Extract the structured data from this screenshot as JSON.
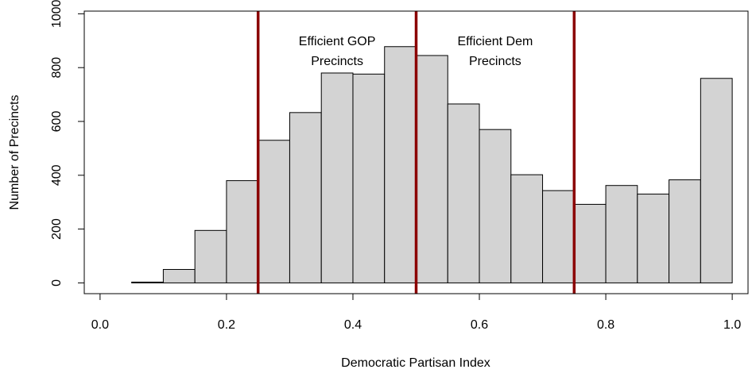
{
  "chart_data": {
    "type": "bar",
    "title": "",
    "xlabel": "Democratic Partisan Index",
    "ylabel": "Number of Precincts",
    "xlim": [
      -0.025,
      1.025
    ],
    "ylim": [
      -40,
      1010
    ],
    "x_ticks": [
      0.0,
      0.2,
      0.4,
      0.6,
      0.8,
      1.0
    ],
    "x_tick_labels": [
      "0.0",
      "0.2",
      "0.4",
      "0.6",
      "0.8",
      "1.0"
    ],
    "y_ticks": [
      0,
      200,
      400,
      600,
      800,
      1000
    ],
    "y_tick_labels": [
      "0",
      "200",
      "400",
      "600",
      "800",
      "1000"
    ],
    "bin_edges": [
      0.05,
      0.1,
      0.15,
      0.2,
      0.25,
      0.3,
      0.35,
      0.4,
      0.45,
      0.5,
      0.55,
      0.6,
      0.65,
      0.7,
      0.75,
      0.8,
      0.85,
      0.9,
      0.95,
      1.0
    ],
    "values": [
      3,
      50,
      195,
      380,
      530,
      633,
      780,
      776,
      878,
      845,
      665,
      570,
      402,
      343,
      292,
      362,
      330,
      383,
      760
    ],
    "bar_fill": "#d3d3d3",
    "bar_stroke": "#000000",
    "reference_lines": [
      {
        "x": 0.25,
        "color": "#8b0000"
      },
      {
        "x": 0.5,
        "color": "#8b0000"
      },
      {
        "x": 0.75,
        "color": "#8b0000"
      }
    ],
    "annotations": [
      {
        "lines": [
          "Efficient GOP",
          "Precincts"
        ],
        "x": 0.375
      },
      {
        "lines": [
          "Efficient Dem",
          "Precincts"
        ],
        "x": 0.625
      }
    ],
    "grid": false,
    "legend": "none"
  }
}
